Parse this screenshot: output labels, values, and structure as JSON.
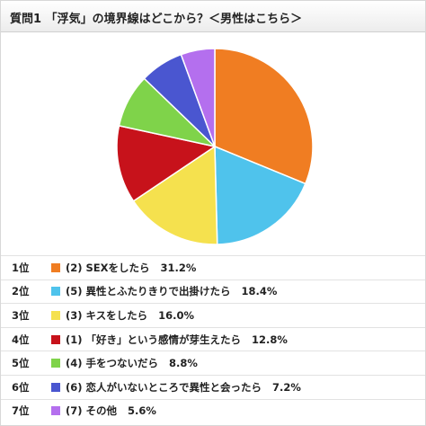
{
  "title": "質問1 「浮気」の境界線はどこから？＜男性はこちら＞",
  "chart_data": {
    "type": "pie",
    "title": "質問1 「浮気」の境界線はどこから？＜男性はこちら＞",
    "slices": [
      {
        "rank": "1位",
        "label": "(2) SEXをしたら",
        "value": 31.2,
        "value_text": "31.2%",
        "color": "#f07d22"
      },
      {
        "rank": "2位",
        "label": "(5) 異性とふたりきりで出掛けたら",
        "value": 18.4,
        "value_text": "18.4%",
        "color": "#4fc3ec"
      },
      {
        "rank": "3位",
        "label": "(3) キスをしたら",
        "value": 16.0,
        "value_text": "16.0%",
        "color": "#f5e14e"
      },
      {
        "rank": "4位",
        "label": "(1) 「好き」という感情が芽生えたら",
        "value": 12.8,
        "value_text": "12.8%",
        "color": "#c7121b"
      },
      {
        "rank": "5位",
        "label": "(4) 手をつないだら",
        "value": 8.8,
        "value_text": "8.8%",
        "color": "#7fd34a"
      },
      {
        "rank": "6位",
        "label": "(6) 恋人がいないところで異性と会ったら",
        "value": 7.2,
        "value_text": "7.2%",
        "color": "#4a56d0"
      },
      {
        "rank": "7位",
        "label": "(7) その他",
        "value": 5.6,
        "value_text": "5.6%",
        "color": "#b46fee"
      }
    ]
  }
}
